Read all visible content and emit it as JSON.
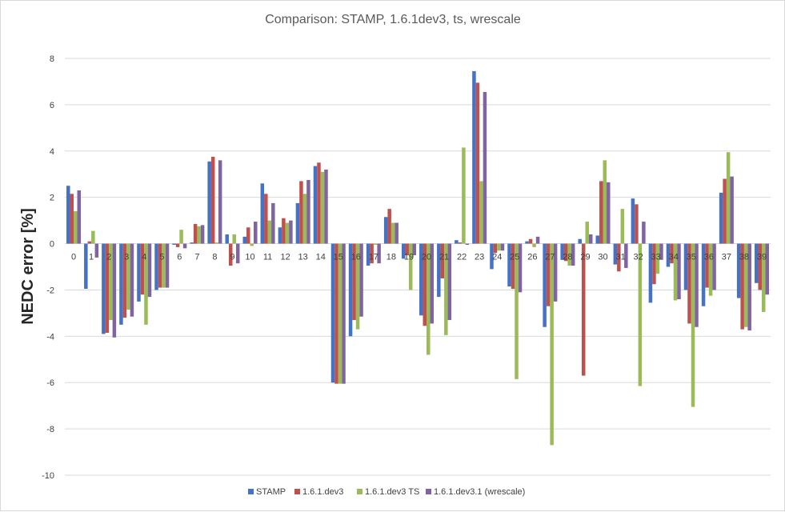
{
  "chart_data": {
    "type": "bar",
    "title": "Comparison: STAMP, 1.6.1dev3, ts, wrescale",
    "xlabel": "",
    "ylabel": "NEDC error [%]",
    "ylim": [
      -10,
      8
    ],
    "yticks": [
      -10,
      -8,
      -6,
      -4,
      -2,
      0,
      2,
      4,
      6,
      8
    ],
    "grid": true,
    "legend_position": "bottom",
    "categories": [
      "0",
      "1",
      "2",
      "3",
      "4",
      "5",
      "6",
      "7",
      "8",
      "9",
      "10",
      "11",
      "12",
      "13",
      "14",
      "15",
      "16",
      "17",
      "18",
      "19",
      "20",
      "21",
      "22",
      "23",
      "24",
      "25",
      "26",
      "27",
      "28",
      "29",
      "30",
      "31",
      "32",
      "33",
      "34",
      "35",
      "36",
      "37",
      "38",
      "39"
    ],
    "series": [
      {
        "name": "STAMP",
        "color": "#4472c4",
        "values": [
          2.5,
          -1.95,
          -3.9,
          -3.5,
          -2.5,
          -2.0,
          -0.05,
          0.05,
          3.55,
          0.4,
          0.3,
          2.6,
          0.7,
          1.75,
          3.35,
          -6.0,
          -4.0,
          -0.95,
          1.15,
          -0.65,
          -3.1,
          -2.3,
          0.15,
          7.45,
          -1.1,
          -1.85,
          0.1,
          -3.6,
          -0.7,
          0.2,
          0.35,
          -0.9,
          1.95,
          -2.55,
          -1.0,
          -2.0,
          -2.7,
          2.2,
          -2.35,
          -1.7
        ]
      },
      {
        "name": "1.6.1.dev3",
        "color": "#c0504d",
        "values": [
          2.15,
          0.1,
          -3.85,
          -3.2,
          -2.2,
          -1.9,
          -0.15,
          0.85,
          3.75,
          -0.95,
          0.7,
          2.15,
          1.1,
          2.7,
          3.5,
          -6.05,
          -3.3,
          -0.85,
          1.5,
          -0.5,
          -3.55,
          -1.5,
          0.05,
          6.95,
          -0.4,
          -1.95,
          0.2,
          -2.7,
          -0.75,
          -5.7,
          2.7,
          -1.2,
          1.7,
          -1.75,
          -0.85,
          -3.45,
          -1.9,
          2.8,
          -3.7,
          -2.0
        ]
      },
      {
        "name": "1.6.1.dev3 TS",
        "color": "#9bbb59",
        "values": [
          1.4,
          0.55,
          -3.3,
          -2.85,
          -3.5,
          -1.9,
          0.6,
          0.75,
          0.05,
          0.4,
          -0.1,
          1.0,
          0.9,
          2.15,
          3.1,
          -6.05,
          -3.7,
          -0.05,
          0.9,
          -2.0,
          -4.8,
          -3.95,
          4.15,
          2.7,
          -0.3,
          -5.85,
          -0.15,
          -8.7,
          -0.95,
          0.95,
          3.6,
          1.5,
          -6.15,
          -1.3,
          -2.45,
          -7.05,
          -2.25,
          3.95,
          -3.6,
          -2.95
        ]
      },
      {
        "name": "1.6.1.dev3.1 (wrescale)",
        "color": "#8064a2",
        "values": [
          2.3,
          -0.6,
          -4.05,
          -3.15,
          -2.3,
          -1.9,
          -0.2,
          0.8,
          3.6,
          -0.85,
          0.95,
          1.75,
          1.0,
          2.75,
          3.2,
          -6.05,
          -3.15,
          -0.85,
          0.9,
          -0.5,
          -3.45,
          -3.3,
          -0.05,
          6.55,
          -0.3,
          -2.1,
          0.3,
          -2.5,
          -0.95,
          0.4,
          2.65,
          -1.05,
          0.95,
          -0.7,
          -2.4,
          -3.6,
          -2.0,
          2.9,
          -3.75,
          -2.2
        ]
      }
    ]
  }
}
